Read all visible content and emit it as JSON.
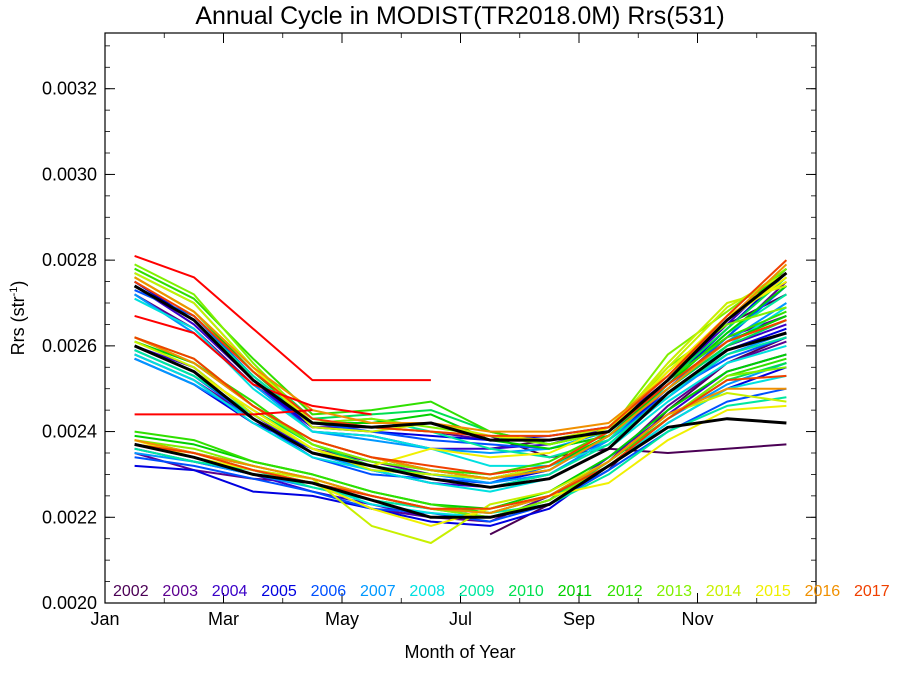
{
  "chart_data": {
    "type": "line",
    "title": "Annual Cycle in MODIST(TR2018.0M) Rrs(531)",
    "xlabel": "Month of Year",
    "ylabel": "Rrs (str",
    "ylabel_sup": "-1",
    "ylabel_close": ")",
    "xlim": [
      0,
      12
    ],
    "ylim": [
      0.002,
      0.00333
    ],
    "x_ticks": [
      {
        "value": 0,
        "label": "Jan"
      },
      {
        "value": 2,
        "label": "Mar"
      },
      {
        "value": 4,
        "label": "May"
      },
      {
        "value": 6,
        "label": "Jul"
      },
      {
        "value": 8,
        "label": "Sep"
      },
      {
        "value": 10,
        "label": "Nov"
      }
    ],
    "y_ticks": [
      {
        "value": 0.002,
        "label": "0.0020"
      },
      {
        "value": 0.0022,
        "label": "0.0022"
      },
      {
        "value": 0.0024,
        "label": "0.0024"
      },
      {
        "value": 0.0026,
        "label": "0.0026"
      },
      {
        "value": 0.0028,
        "label": "0.0028"
      },
      {
        "value": 0.003,
        "label": "0.0030"
      },
      {
        "value": 0.0032,
        "label": "0.0032"
      }
    ],
    "grid": false,
    "legend_placement": "bottom",
    "x": [
      0.5,
      1.5,
      2.5,
      3.5,
      4.5,
      5.5,
      6.5,
      7.5,
      8.5,
      9.5,
      10.5,
      11.5
    ],
    "series": [
      {
        "name": "2002",
        "color": "#4b0055",
        "groups": [
          [
            null,
            null,
            null,
            null,
            null,
            null,
            0.00216,
            0.00223,
            0.00231,
            0.00245,
            0.00256,
            0.00262
          ],
          [
            null,
            null,
            null,
            null,
            null,
            null,
            0.00236,
            0.00238,
            0.0024,
            0.00252,
            0.00265,
            0.00272
          ],
          [
            null,
            null,
            null,
            null,
            null,
            null,
            0.00239,
            0.00234,
            0.00236,
            0.00235,
            0.00236,
            0.00237
          ]
        ]
      },
      {
        "name": "2003",
        "color": "#5c0090",
        "groups": [
          [
            0.00235,
            0.00231,
            0.00229,
            0.00228,
            0.00222,
            0.0022,
            0.00219,
            0.00225,
            0.00233,
            0.00246,
            0.00256,
            0.00261
          ],
          [
            0.00258,
            0.00252,
            0.00243,
            0.00236,
            0.00233,
            0.0023,
            0.00229,
            0.00232,
            0.0024,
            0.00252,
            0.00262,
            0.00267
          ],
          [
            0.00272,
            0.00264,
            0.00251,
            0.00241,
            0.00241,
            0.0024,
            0.00238,
            0.00238,
            0.0024,
            0.0025,
            0.00262,
            0.00275
          ]
        ]
      },
      {
        "name": "2004",
        "color": "#3a00c8",
        "groups": [
          [
            0.00236,
            0.00233,
            0.0023,
            0.00226,
            0.00223,
            0.0022,
            0.0022,
            0.00224,
            0.00234,
            0.00244,
            0.00254,
            0.00258
          ],
          [
            0.0026,
            0.00255,
            0.00244,
            0.00235,
            0.00231,
            0.00228,
            0.00227,
            0.0023,
            0.00238,
            0.0025,
            0.0026,
            0.00265
          ],
          [
            0.00274,
            0.00265,
            0.00252,
            0.0024,
            0.00239,
            0.00236,
            0.00236,
            0.00237,
            0.00241,
            0.00252,
            0.00265,
            0.00278
          ]
        ]
      },
      {
        "name": "2005",
        "color": "#0000e0",
        "groups": [
          [
            0.00232,
            0.00231,
            0.00226,
            0.00225,
            0.00222,
            0.00219,
            0.00218,
            0.00222,
            0.00232,
            0.00242,
            0.0025,
            0.00255
          ],
          [
            0.00257,
            0.00251,
            0.00242,
            0.00236,
            0.00232,
            0.00229,
            0.00228,
            0.00231,
            0.00239,
            0.00249,
            0.00259,
            0.00264
          ],
          [
            0.00275,
            0.00266,
            0.00252,
            0.00241,
            0.0024,
            0.00239,
            0.00238,
            0.00239,
            0.00241,
            0.00251,
            0.00264,
            0.00277
          ]
        ]
      },
      {
        "name": "2006",
        "color": "#0050ff",
        "groups": [
          [
            0.00234,
            0.00232,
            0.00229,
            0.00226,
            0.00222,
            0.00221,
            0.00219,
            0.00223,
            0.00231,
            0.0024,
            0.00247,
            0.0025
          ],
          [
            0.00259,
            0.00253,
            0.00243,
            0.00234,
            0.0023,
            0.00229,
            0.00228,
            0.00232,
            0.00238,
            0.00249,
            0.00257,
            0.00262
          ],
          [
            0.00273,
            0.00267,
            0.00253,
            0.00242,
            0.0024,
            0.00238,
            0.00237,
            0.00236,
            0.00239,
            0.0025,
            0.00262,
            0.00274
          ]
        ]
      },
      {
        "name": "2007",
        "color": "#0098ff",
        "groups": [
          [
            0.00235,
            0.00233,
            0.0023,
            0.00227,
            0.00224,
            0.00222,
            0.00221,
            0.00225,
            0.00233,
            0.00243,
            0.00251,
            0.00256
          ],
          [
            0.00257,
            0.00251,
            0.00243,
            0.00235,
            0.00231,
            0.0023,
            0.00228,
            0.0023,
            0.00238,
            0.00248,
            0.00258,
            0.00263
          ],
          [
            0.00272,
            0.00263,
            0.00251,
            0.0024,
            0.00238,
            0.00236,
            0.00235,
            0.00236,
            0.0024,
            0.0025,
            0.00261,
            0.0027
          ]
        ]
      },
      {
        "name": "2008",
        "color": "#00e0e0",
        "groups": [
          [
            0.00237,
            0.00234,
            0.00231,
            0.00228,
            0.00223,
            0.00221,
            0.0022,
            0.00223,
            0.00232,
            0.00242,
            0.0025,
            0.00253
          ],
          [
            0.00258,
            0.00252,
            0.00242,
            0.00234,
            0.00231,
            0.00228,
            0.00226,
            0.00229,
            0.00236,
            0.00247,
            0.00256,
            0.0026
          ],
          [
            0.00271,
            0.00264,
            0.0025,
            0.0024,
            0.00239,
            0.00236,
            0.00232,
            0.00232,
            0.00237,
            0.00248,
            0.0026,
            0.00269
          ]
        ]
      },
      {
        "name": "2009",
        "color": "#00e8a0",
        "groups": [
          [
            0.00236,
            0.00233,
            0.00231,
            0.00227,
            0.00224,
            0.00222,
            0.00221,
            0.00223,
            0.0023,
            0.0024,
            0.00246,
            0.00248
          ],
          [
            0.00259,
            0.00253,
            0.00244,
            0.00236,
            0.00232,
            0.00229,
            0.00227,
            0.0023,
            0.00237,
            0.00249,
            0.00258,
            0.00262
          ],
          [
            0.00274,
            0.00266,
            0.00253,
            0.00242,
            0.00243,
            0.0024,
            0.00236,
            0.00234,
            0.00238,
            0.00251,
            0.00263,
            0.00272
          ]
        ]
      },
      {
        "name": "2010",
        "color": "#00e050",
        "groups": [
          [
            0.00238,
            0.00235,
            0.00232,
            0.00229,
            0.00225,
            0.00222,
            0.0022,
            0.00224,
            0.00233,
            0.00243,
            0.00252,
            0.00256
          ],
          [
            0.0026,
            0.00254,
            0.00245,
            0.00237,
            0.00232,
            0.0023,
            0.00229,
            0.00231,
            0.00239,
            0.0025,
            0.0026,
            0.00266
          ],
          [
            0.00277,
            0.0027,
            0.00255,
            0.00243,
            0.00244,
            0.00245,
            0.0024,
            0.00237,
            0.0024,
            0.00252,
            0.00264,
            0.00276
          ]
        ]
      },
      {
        "name": "2011",
        "color": "#00d000",
        "groups": [
          [
            0.00239,
            0.00237,
            0.00233,
            0.0023,
            0.00226,
            0.00223,
            0.00222,
            0.00226,
            0.00234,
            0.00245,
            0.00254,
            0.00258
          ],
          [
            0.00261,
            0.00256,
            0.00246,
            0.00238,
            0.00234,
            0.00231,
            0.00229,
            0.00232,
            0.00239,
            0.00251,
            0.00261,
            0.00267
          ],
          [
            0.00276,
            0.00268,
            0.00254,
            0.00242,
            0.00242,
            0.00244,
            0.00238,
            0.00236,
            0.00239,
            0.00251,
            0.00263,
            0.00274
          ]
        ]
      },
      {
        "name": "2012",
        "color": "#30e000",
        "groups": [
          [
            0.0024,
            0.00238,
            0.00233,
            0.0023,
            0.00226,
            0.00223,
            0.00221,
            0.00225,
            0.00233,
            0.00243,
            0.00253,
            0.00257
          ],
          [
            0.00262,
            0.00256,
            0.00247,
            0.00237,
            0.00233,
            0.00231,
            0.0023,
            0.00233,
            0.0024,
            0.00252,
            0.00262,
            0.00268
          ],
          [
            0.00278,
            0.00271,
            0.00257,
            0.00244,
            0.00245,
            0.00247,
            0.0024,
            0.00237,
            0.0024,
            0.00254,
            0.00266,
            0.00278
          ]
        ]
      },
      {
        "name": "2013",
        "color": "#80f000",
        "groups": [
          [
            0.00238,
            0.00236,
            0.00232,
            0.00229,
            0.00225,
            0.00222,
            0.0022,
            0.00224,
            0.00232,
            0.00243,
            0.00253,
            0.00255
          ],
          [
            0.00262,
            0.00257,
            0.00246,
            0.00237,
            0.00233,
            0.00231,
            0.00229,
            0.00232,
            0.0024,
            0.00255,
            0.00265,
            0.00269
          ],
          [
            0.00279,
            0.00272,
            0.00256,
            0.00242,
            0.00243,
            0.00241,
            0.00239,
            0.00237,
            0.0024,
            0.00258,
            0.00268,
            0.00278
          ]
        ]
      },
      {
        "name": "2014",
        "color": "#c8f000",
        "groups": [
          [
            0.00237,
            0.00235,
            0.00231,
            0.00229,
            0.00218,
            0.00214,
            0.00223,
            0.00226,
            0.00233,
            0.00244,
            0.00249,
            0.00247
          ],
          [
            0.00261,
            0.00255,
            0.00244,
            0.00236,
            0.00231,
            0.0023,
            0.00229,
            0.00232,
            0.0024,
            0.00256,
            0.0027,
            0.00274
          ],
          [
            0.00277,
            0.0027,
            0.00255,
            0.00241,
            0.0024,
            0.00242,
            0.00239,
            0.00238,
            0.00241,
            0.00255,
            0.00269,
            0.00277
          ]
        ]
      },
      {
        "name": "2015",
        "color": "#f0f000",
        "groups": [
          [
            0.00238,
            0.00234,
            0.00231,
            0.00228,
            0.00222,
            0.00218,
            0.00222,
            0.00225,
            0.00228,
            0.00238,
            0.00245,
            0.00246
          ],
          [
            0.0026,
            0.00254,
            0.00245,
            0.00236,
            0.00232,
            0.00236,
            0.00234,
            0.00235,
            0.00241,
            0.00254,
            0.00267,
            0.00275
          ],
          [
            0.00276,
            0.00268,
            0.00255,
            0.00242,
            0.00241,
            0.0024,
            0.00239,
            0.00238,
            0.0024,
            0.00254,
            0.00266,
            0.00276
          ]
        ]
      },
      {
        "name": "2016",
        "color": "#f09000",
        "groups": [
          [
            0.00238,
            0.00235,
            0.00232,
            0.00229,
            0.00225,
            0.00222,
            0.00221,
            0.00225,
            0.00233,
            0.00244,
            0.0025,
            0.0025
          ],
          [
            0.00262,
            0.00256,
            0.00246,
            0.00238,
            0.00234,
            0.00231,
            0.00229,
            0.00231,
            0.00239,
            0.0025,
            0.00261,
            0.00266
          ],
          [
            0.00276,
            0.00268,
            0.00255,
            0.00245,
            0.00242,
            0.00242,
            0.0024,
            0.0024,
            0.00242,
            0.00253,
            0.00266,
            0.00279
          ]
        ]
      },
      {
        "name": "2017",
        "color": "#f04000",
        "groups": [
          [
            0.00237,
            0.00235,
            0.00231,
            0.00228,
            0.00225,
            0.00222,
            0.00222,
            0.00225,
            0.00232,
            0.00243,
            0.00252,
            0.00253
          ],
          [
            0.00262,
            0.00257,
            0.00246,
            0.00238,
            0.00234,
            0.00232,
            0.0023,
            0.00232,
            0.0024,
            0.00251,
            0.00261,
            0.00266
          ],
          [
            0.00275,
            0.00267,
            0.00254,
            0.00243,
            0.00241,
            0.0024,
            0.00239,
            0.00239,
            0.00241,
            0.00253,
            0.00267,
            0.0028
          ]
        ]
      },
      {
        "name": "",
        "color": "#ff0000",
        "groups": [
          [
            0.00281,
            0.00276,
            0.00264,
            0.00252,
            0.00252,
            0.00252,
            null,
            null,
            null,
            null,
            null,
            null
          ],
          [
            0.00267,
            0.00263,
            0.00251,
            0.00246,
            0.00244,
            null,
            null,
            null,
            null,
            null,
            null,
            null
          ],
          [
            0.00244,
            0.00244,
            0.00244,
            0.00245,
            null,
            null,
            null,
            null,
            null,
            null,
            null,
            null
          ]
        ]
      },
      {
        "name": "",
        "color": "#000000",
        "width": 3,
        "groups": [
          [
            0.00237,
            0.00234,
            0.0023,
            0.00228,
            0.00224,
            0.0022,
            0.0022,
            0.00223,
            0.00232,
            0.00241,
            0.00243,
            0.00242
          ],
          [
            0.0026,
            0.00254,
            0.00243,
            0.00235,
            0.00232,
            0.00229,
            0.00227,
            0.00229,
            0.00236,
            0.00249,
            0.00259,
            0.00263
          ],
          [
            0.00274,
            0.00266,
            0.00252,
            0.00242,
            0.00241,
            0.00242,
            0.00238,
            0.00238,
            0.0024,
            0.00252,
            0.00266,
            0.00277
          ]
        ]
      }
    ]
  }
}
